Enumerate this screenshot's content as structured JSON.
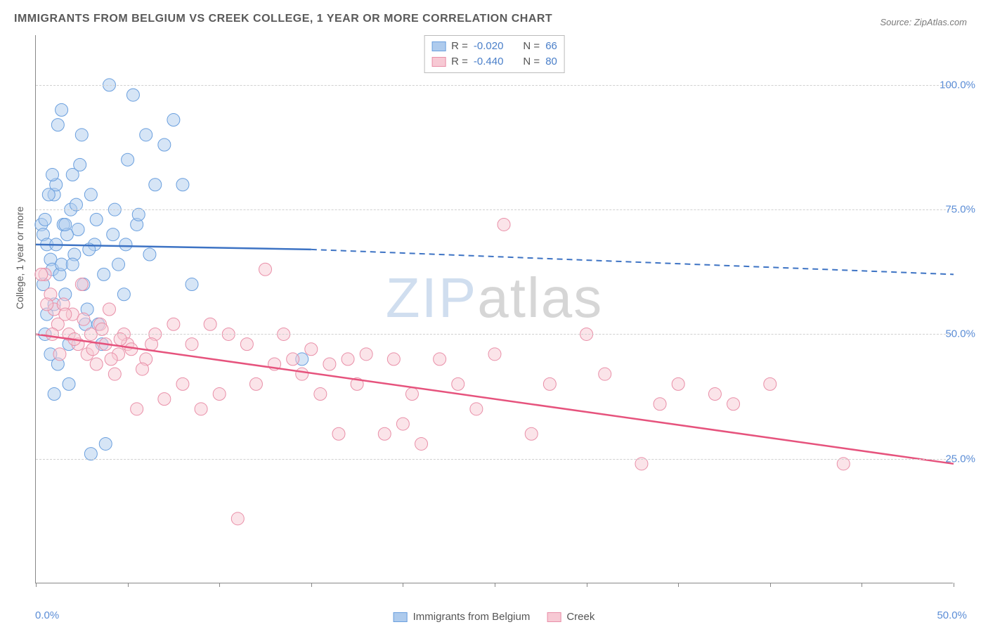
{
  "title": "IMMIGRANTS FROM BELGIUM VS CREEK COLLEGE, 1 YEAR OR MORE CORRELATION CHART",
  "source": "Source: ZipAtlas.com",
  "ylabel": "College, 1 year or more",
  "watermark_a": "ZIP",
  "watermark_b": "atlas",
  "chart": {
    "type": "scatter",
    "background_color": "#ffffff",
    "grid_color": "#d0d0d0",
    "axis_color": "#888888",
    "xlim": [
      0,
      50
    ],
    "ylim": [
      0,
      110
    ],
    "ytick_labels": [
      "25.0%",
      "50.0%",
      "75.0%",
      "100.0%"
    ],
    "ytick_values": [
      25,
      50,
      75,
      100
    ],
    "xtick_values": [
      0,
      5,
      10,
      15,
      20,
      25,
      30,
      35,
      40,
      45,
      50
    ],
    "xtick_label_left": "0.0%",
    "xtick_label_right": "50.0%",
    "label_color": "#5b8dd6",
    "title_fontsize": 16,
    "label_fontsize": 14,
    "tick_fontsize": 15,
    "marker_radius": 9,
    "marker_opacity": 0.5,
    "line_width": 2.5,
    "series": [
      {
        "name": "Immigrants from Belgium",
        "color_fill": "#aecbed",
        "color_stroke": "#6a9fde",
        "line_color": "#3d73c4",
        "R_label": "R = ",
        "R_value": "-0.020",
        "N_label": "N = ",
        "N_value": "66",
        "trend": {
          "x1": 0,
          "y1": 68,
          "x2_solid": 15,
          "y2_solid": 67,
          "x2": 50,
          "y2": 62,
          "dash_after": 15
        },
        "points": [
          [
            0.3,
            72
          ],
          [
            0.4,
            70
          ],
          [
            0.5,
            73
          ],
          [
            0.6,
            68
          ],
          [
            0.8,
            65
          ],
          [
            0.9,
            63
          ],
          [
            1.0,
            78
          ],
          [
            1.1,
            80
          ],
          [
            1.2,
            92
          ],
          [
            1.4,
            95
          ],
          [
            1.5,
            72
          ],
          [
            1.6,
            58
          ],
          [
            1.8,
            40
          ],
          [
            1.9,
            75
          ],
          [
            2.0,
            82
          ],
          [
            2.1,
            66
          ],
          [
            2.3,
            71
          ],
          [
            2.5,
            90
          ],
          [
            2.6,
            60
          ],
          [
            2.8,
            55
          ],
          [
            3.0,
            78
          ],
          [
            3.2,
            68
          ],
          [
            3.4,
            52
          ],
          [
            3.6,
            48
          ],
          [
            3.8,
            28
          ],
          [
            4.0,
            100
          ],
          [
            4.2,
            70
          ],
          [
            4.5,
            64
          ],
          [
            4.8,
            58
          ],
          [
            5.0,
            85
          ],
          [
            5.3,
            98
          ],
          [
            5.5,
            72
          ],
          [
            6.0,
            90
          ],
          [
            6.5,
            80
          ],
          [
            7.0,
            88
          ],
          [
            7.5,
            93
          ],
          [
            8.0,
            80
          ],
          [
            8.5,
            60
          ],
          [
            1.0,
            56
          ],
          [
            1.3,
            62
          ],
          [
            0.7,
            78
          ],
          [
            0.9,
            82
          ],
          [
            1.1,
            68
          ],
          [
            1.4,
            64
          ],
          [
            1.7,
            70
          ],
          [
            2.2,
            76
          ],
          [
            2.4,
            84
          ],
          [
            2.9,
            67
          ],
          [
            3.3,
            73
          ],
          [
            3.7,
            62
          ],
          [
            4.3,
            75
          ],
          [
            4.9,
            68
          ],
          [
            5.6,
            74
          ],
          [
            6.2,
            66
          ],
          [
            0.5,
            50
          ],
          [
            0.8,
            46
          ],
          [
            1.2,
            44
          ],
          [
            1.6,
            72
          ],
          [
            2.0,
            64
          ],
          [
            14.5,
            45
          ],
          [
            0.4,
            60
          ],
          [
            0.6,
            54
          ],
          [
            1.0,
            38
          ],
          [
            1.8,
            48
          ],
          [
            3.0,
            26
          ],
          [
            2.7,
            52
          ]
        ]
      },
      {
        "name": "Creek",
        "color_fill": "#f7c9d4",
        "color_stroke": "#e98fa8",
        "line_color": "#e6537d",
        "R_label": "R = ",
        "R_value": "-0.440",
        "N_label": "N = ",
        "N_value": "80",
        "trend": {
          "x1": 0,
          "y1": 50,
          "x2_solid": 50,
          "y2_solid": 24,
          "x2": 50,
          "y2": 24,
          "dash_after": 50
        },
        "points": [
          [
            0.5,
            62
          ],
          [
            0.8,
            58
          ],
          [
            1.0,
            55
          ],
          [
            1.2,
            52
          ],
          [
            1.5,
            56
          ],
          [
            1.8,
            50
          ],
          [
            2.0,
            54
          ],
          [
            2.3,
            48
          ],
          [
            2.5,
            60
          ],
          [
            2.8,
            46
          ],
          [
            3.0,
            50
          ],
          [
            3.3,
            44
          ],
          [
            3.5,
            52
          ],
          [
            3.8,
            48
          ],
          [
            4.0,
            55
          ],
          [
            4.3,
            42
          ],
          [
            4.5,
            46
          ],
          [
            4.8,
            50
          ],
          [
            5.0,
            48
          ],
          [
            5.5,
            35
          ],
          [
            6.0,
            45
          ],
          [
            6.5,
            50
          ],
          [
            7.0,
            37
          ],
          [
            7.5,
            52
          ],
          [
            8.0,
            40
          ],
          [
            8.5,
            48
          ],
          [
            9.0,
            35
          ],
          [
            9.5,
            52
          ],
          [
            10.0,
            38
          ],
          [
            10.5,
            50
          ],
          [
            11.0,
            13
          ],
          [
            11.5,
            48
          ],
          [
            12.0,
            40
          ],
          [
            12.5,
            63
          ],
          [
            13.0,
            44
          ],
          [
            13.5,
            50
          ],
          [
            14.0,
            45
          ],
          [
            14.5,
            42
          ],
          [
            15.0,
            47
          ],
          [
            15.5,
            38
          ],
          [
            16.0,
            44
          ],
          [
            16.5,
            30
          ],
          [
            17.0,
            45
          ],
          [
            17.5,
            40
          ],
          [
            18.0,
            46
          ],
          [
            19.0,
            30
          ],
          [
            19.5,
            45
          ],
          [
            20.0,
            32
          ],
          [
            20.5,
            38
          ],
          [
            21.0,
            28
          ],
          [
            22.0,
            45
          ],
          [
            23.0,
            40
          ],
          [
            24.0,
            35
          ],
          [
            25.0,
            46
          ],
          [
            25.5,
            72
          ],
          [
            27.0,
            30
          ],
          [
            28.0,
            40
          ],
          [
            30.0,
            50
          ],
          [
            31.0,
            42
          ],
          [
            33.0,
            24
          ],
          [
            34.0,
            36
          ],
          [
            35.0,
            40
          ],
          [
            37.0,
            38
          ],
          [
            38.0,
            36
          ],
          [
            40.0,
            40
          ],
          [
            44.0,
            24
          ],
          [
            0.3,
            62
          ],
          [
            0.6,
            56
          ],
          [
            0.9,
            50
          ],
          [
            1.3,
            46
          ],
          [
            1.6,
            54
          ],
          [
            2.1,
            49
          ],
          [
            2.6,
            53
          ],
          [
            3.1,
            47
          ],
          [
            3.6,
            51
          ],
          [
            4.1,
            45
          ],
          [
            4.6,
            49
          ],
          [
            5.2,
            47
          ],
          [
            5.8,
            43
          ],
          [
            6.3,
            48
          ]
        ]
      }
    ]
  },
  "legend_bottom": {
    "items": [
      {
        "label": "Immigrants from Belgium",
        "fill": "#aecbed",
        "stroke": "#6a9fde"
      },
      {
        "label": "Creek",
        "fill": "#f7c9d4",
        "stroke": "#e98fa8"
      }
    ]
  }
}
